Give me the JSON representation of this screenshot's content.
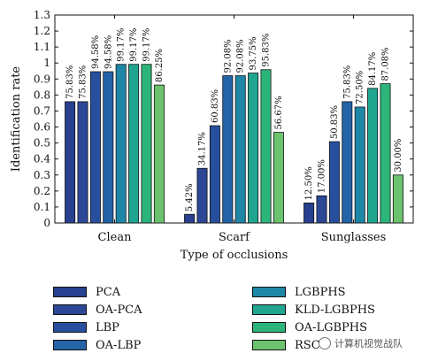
{
  "chart_data": {
    "type": "bar",
    "title": "",
    "xlabel": "Type of occlusions",
    "ylabel": "Identification rate",
    "ylim": [
      0,
      1.3
    ],
    "yticks": [
      "0",
      "0.1",
      "0.2",
      "0.3",
      "0.4",
      "0.5",
      "0.6",
      "0.7",
      "0.8",
      "0.9",
      "1",
      "1.1",
      "1.2",
      "1.3"
    ],
    "grid": false,
    "legend_placement": "bottom",
    "categories": [
      "Clean",
      "Scarf",
      "Sunglasses"
    ],
    "series": [
      {
        "name": "PCA",
        "color": "#27408f",
        "values": [
          0.7583,
          0.0542,
          0.125
        ],
        "labels": [
          "75.83%",
          "5.42%",
          "12.50%"
        ]
      },
      {
        "name": "OA-PCA",
        "color": "#2b4796",
        "values": [
          0.7583,
          0.3417,
          0.17
        ],
        "labels": [
          "75.83%",
          "34.17%",
          "17.00%"
        ]
      },
      {
        "name": "LBP",
        "color": "#274f9d",
        "values": [
          0.9458,
          0.6083,
          0.5083
        ],
        "labels": [
          "94.58%",
          "60.83%",
          "50.83%"
        ]
      },
      {
        "name": "OA-LBP",
        "color": "#2363a8",
        "values": [
          0.9458,
          0.9208,
          0.7583
        ],
        "labels": [
          "94.58%",
          "92.08%",
          "75.83%"
        ]
      },
      {
        "name": "LGBPHS",
        "color": "#1e86a6",
        "values": [
          0.9917,
          0.9208,
          0.725
        ],
        "labels": [
          "99.17%",
          "92.08%",
          "72.50%"
        ]
      },
      {
        "name": "KLD-LGBPHS",
        "color": "#20a591",
        "values": [
          0.9917,
          0.9375,
          0.8417
        ],
        "labels": [
          "99.17%",
          "93.75%",
          "84.17%"
        ]
      },
      {
        "name": "OA-LGBPHS",
        "color": "#2cb57a",
        "values": [
          0.9917,
          0.9583,
          0.8708
        ],
        "labels": [
          "99.17%",
          "95.83%",
          "87.08%"
        ]
      },
      {
        "name": "RSC",
        "color": "#6cc36d",
        "values": [
          0.8625,
          0.5667,
          0.3
        ],
        "labels": [
          "86.25%",
          "56.67%",
          "30.00%"
        ]
      }
    ]
  },
  "watermark": {
    "text": "计算机视觉战队",
    "icon": "wechat-icon"
  }
}
